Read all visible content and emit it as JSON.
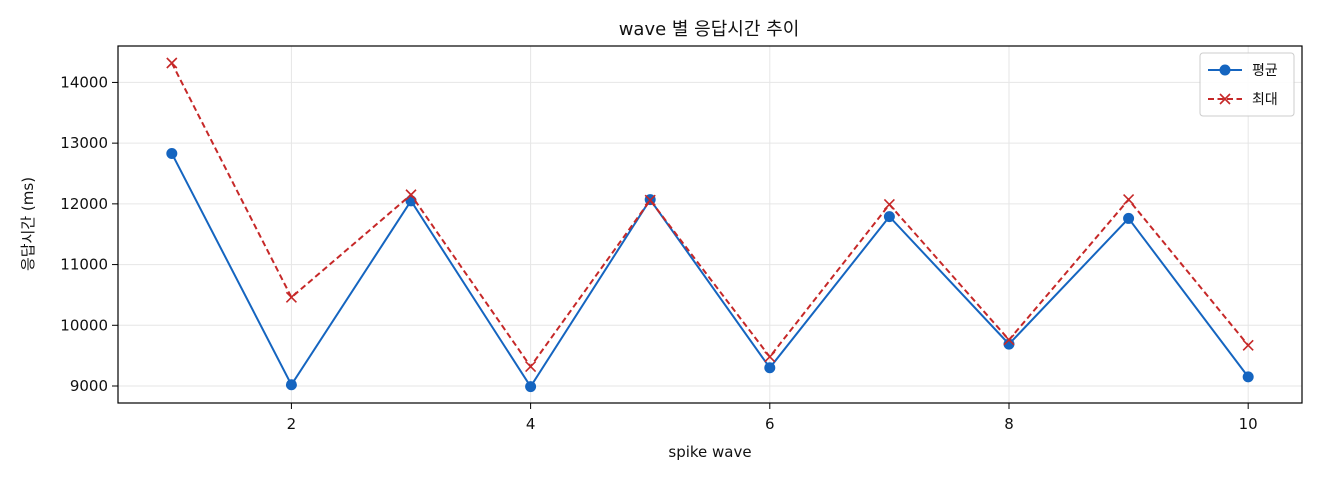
{
  "chart_data": {
    "type": "line",
    "title": "wave 별 응답시간 추이",
    "xlabel": "spike wave",
    "ylabel": "응답시간 (ms)",
    "x": [
      1,
      2,
      3,
      4,
      5,
      6,
      7,
      8,
      9,
      10
    ],
    "xlim": [
      0.55,
      10.45
    ],
    "ylim": [
      8720,
      14600
    ],
    "xticks": [
      2,
      4,
      6,
      8,
      10
    ],
    "yticks": [
      9000,
      10000,
      11000,
      12000,
      13000,
      14000
    ],
    "grid": true,
    "legend_position": "top-right",
    "series": [
      {
        "name": "평균",
        "values": [
          12830,
          9020,
          12050,
          8990,
          12070,
          9300,
          11790,
          9690,
          11760,
          9150
        ],
        "color": "#1565c0",
        "line_style": "solid",
        "marker": "circle"
      },
      {
        "name": "최대",
        "values": [
          14320,
          10460,
          12150,
          9320,
          12060,
          9480,
          11990,
          9760,
          12070,
          9670
        ],
        "color": "#c62828",
        "line_style": "dashed",
        "marker": "x"
      }
    ]
  }
}
